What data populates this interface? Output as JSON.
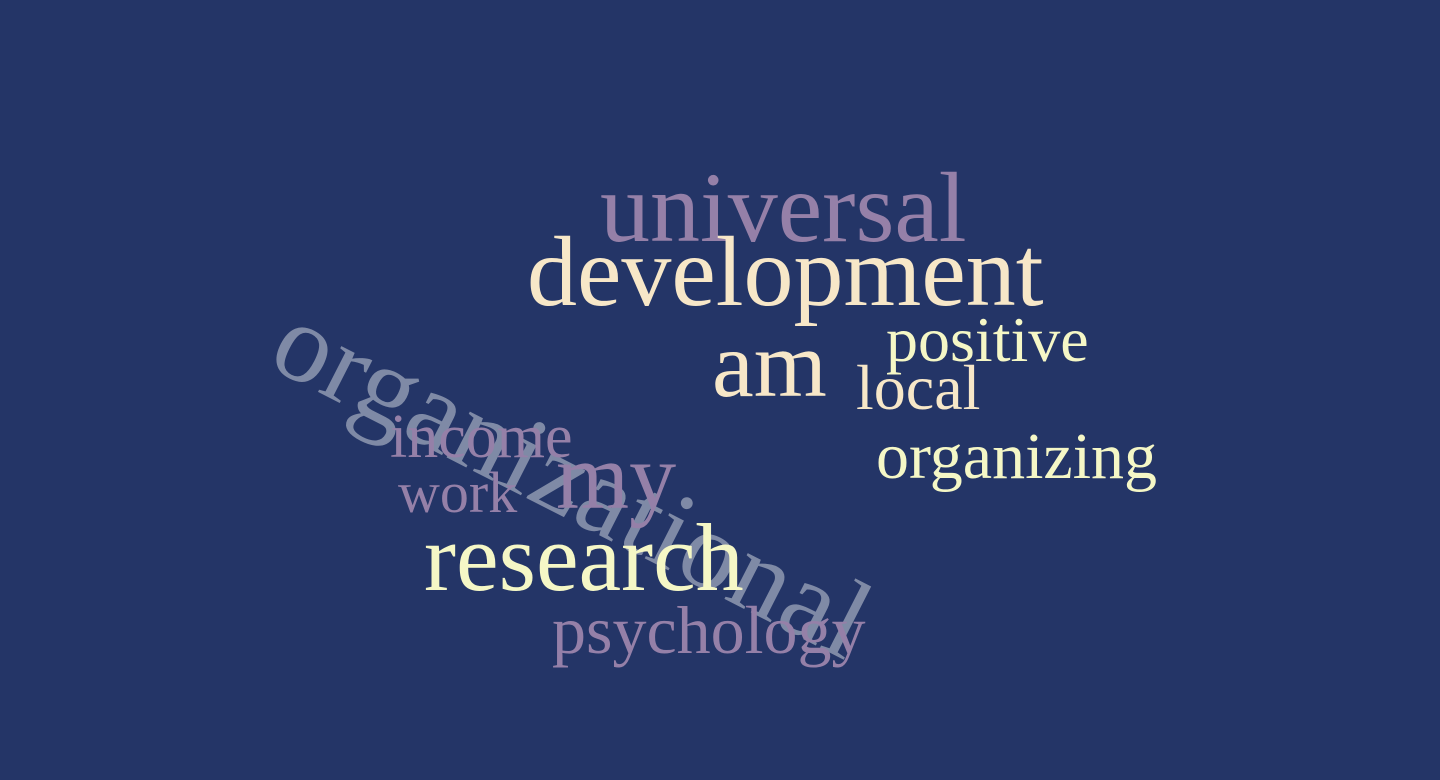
{
  "cloud": {
    "background": "#243567",
    "palette": {
      "slate": "#7f8aa6",
      "mauve": "#9580a8",
      "cream": "#f7e7c8",
      "lime": "#f5f7c6"
    },
    "words": {
      "organizational": "organizational",
      "universal": "universal",
      "development": "development",
      "am": "am",
      "positive": "positive",
      "local": "local",
      "income": "income",
      "organizing": "organizing",
      "my": "my",
      "work": "work",
      "research": "research",
      "psychology": "psychology"
    }
  }
}
